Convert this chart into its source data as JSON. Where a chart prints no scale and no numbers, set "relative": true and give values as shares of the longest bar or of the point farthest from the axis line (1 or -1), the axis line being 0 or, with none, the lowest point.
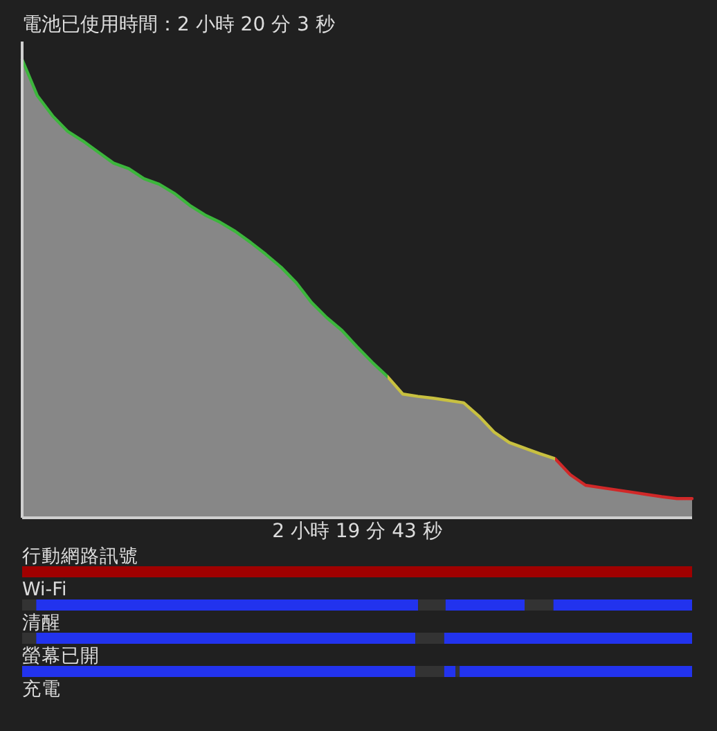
{
  "chart_data": [
    {
      "type": "line",
      "title": "電池已使用時間：2 小時 20 分 3 秒",
      "xlabel": "2 小時 19 分 43 秒",
      "relative": true,
      "categories": [
        null,
        null,
        null,
        null,
        null,
        null,
        null,
        null,
        null,
        null,
        null,
        null,
        null,
        null,
        null,
        null,
        null,
        null,
        null,
        null,
        null,
        null,
        null,
        null,
        null,
        null,
        null,
        null,
        null,
        null,
        null,
        null,
        null,
        null,
        null,
        null,
        null,
        null,
        null,
        null,
        null,
        null,
        null,
        null,
        null
      ],
      "series": [
        {
          "type": "area",
          "color": "#878787",
          "colors": [
            "#3cb63c",
            "#3cb63c",
            "#3cb63c",
            "#3cb63c",
            "#3cb63c",
            "#3cb63c",
            "#3cb63c",
            "#3cb63c",
            "#3cb63c",
            "#3cb63c",
            "#3cb63c",
            "#3cb63c",
            "#3cb63c",
            "#3cb63c",
            "#3cb63c",
            "#3cb63c",
            "#3cb63c",
            "#3cb63c",
            "#3cb63c",
            "#3cb63c",
            "#3cb63c",
            "#3cb63c",
            "#3cb63c",
            "#3cb63c",
            "#3cb63c",
            "#c8c040",
            "#c8c040",
            "#c8c040",
            "#c8c040",
            "#c8c040",
            "#c8c040",
            "#c8c040",
            "#c8c040",
            "#c8c040",
            "#c8c040",
            "#c8c040",
            "#d02828",
            "#d02828",
            "#d02828",
            "#d02828",
            "#d02828",
            "#d02828",
            "#d02828",
            "#d02828",
            "#d02828"
          ],
          "values": [
            1.0,
            0.921,
            0.877,
            0.843,
            0.822,
            0.798,
            0.774,
            0.762,
            0.74,
            0.728,
            0.708,
            0.682,
            0.661,
            0.645,
            0.625,
            0.601,
            0.575,
            0.547,
            0.513,
            0.47,
            0.437,
            0.409,
            0.373,
            0.339,
            0.308,
            0.27,
            0.265,
            0.261,
            0.256,
            0.251,
            0.222,
            0.187,
            0.164,
            0.152,
            0.14,
            0.129,
            0.094,
            0.071,
            0.066,
            0.061,
            0.056,
            0.051,
            0.046,
            0.042,
            0.042
          ]
        }
      ]
    },
    {
      "type": "bar",
      "orientation": "horizontal",
      "relative": true,
      "stacked": true,
      "categories": [
        "行動網路訊號",
        "Wi-Fi",
        "清醒",
        "螢幕已開",
        "充電"
      ],
      "series": [
        {
          "color": "#333333",
          "values": [
            null,
            0.021,
            0.021,
            null,
            null
          ]
        },
        {
          "colors": [
            "#a00000",
            "#2233ee",
            "#2233ee",
            "#2233ee",
            null
          ],
          "values": [
            1,
            0.57,
            0.566,
            0.587,
            null
          ]
        },
        {
          "color": "#333333",
          "values": [
            null,
            0.041,
            0.043,
            0.043,
            null
          ]
        },
        {
          "color": "#2233ee",
          "values": [
            null,
            0.118,
            0.37,
            0.017,
            null
          ]
        },
        {
          "color": "#333333",
          "values": [
            null,
            0.043,
            null,
            0.006,
            null
          ]
        },
        {
          "color": "#2233ee",
          "values": [
            null,
            0.207,
            null,
            0.347,
            null
          ]
        }
      ]
    }
  ]
}
